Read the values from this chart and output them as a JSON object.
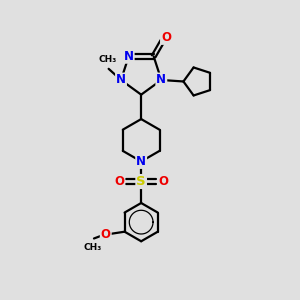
{
  "background_color": "#e0e0e0",
  "bond_color": "#000000",
  "N_color": "#0000ee",
  "O_color": "#ee0000",
  "S_color": "#cccc00",
  "lw": 1.6,
  "figsize": [
    3.0,
    3.0
  ],
  "dpi": 100,
  "xlim": [
    0,
    10
  ],
  "ylim": [
    0,
    10
  ],
  "fs_heavy": 8.5,
  "fs_label": 7.0
}
